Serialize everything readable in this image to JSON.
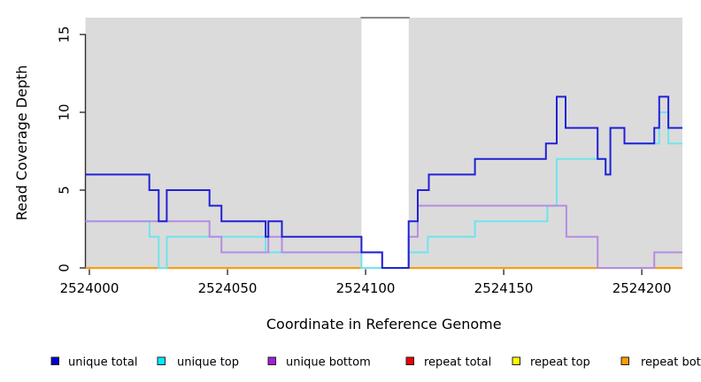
{
  "chart_data": {
    "type": "line",
    "step": "post",
    "title": "",
    "xlabel": "Coordinate in Reference Genome",
    "ylabel": "Read Coverage Depth",
    "xlim": [
      2523998.56,
      2524214.7
    ],
    "ylim": [
      0,
      16.08
    ],
    "x_ticks": [
      "2524000",
      "2524050",
      "2524100",
      "2524150",
      "2524200"
    ],
    "x_tick_values": [
      2524000,
      2524050,
      2524100,
      2524150,
      2524200
    ],
    "y_ticks": [
      "0",
      "5",
      "10",
      "15"
    ],
    "y_tick_values": [
      0,
      5,
      10,
      15
    ],
    "grid": false,
    "plot_bg": "#dbdbdb",
    "gap_band": {
      "x0": 2524098.5,
      "x1": 2524115.6,
      "color": "#ffffff",
      "top_border": "#8a8a8a"
    },
    "legend_position": "bottom",
    "series": [
      {
        "name": "repeat total",
        "color": "#e00000",
        "points": [
          [
            2523998.56,
            0
          ]
        ]
      },
      {
        "name": "repeat top",
        "color": "#f0f000",
        "points": [
          [
            2523998.56,
            0
          ]
        ]
      },
      {
        "name": "repeat bottom",
        "color": "#ff9d00",
        "points": [
          [
            2523998.56,
            0
          ]
        ]
      },
      {
        "name": "unique top",
        "color": "#70e4ef",
        "points": [
          [
            2523998.56,
            3
          ],
          [
            2524021.8,
            2
          ],
          [
            2524025.1,
            0
          ],
          [
            2524028,
            2
          ],
          [
            2524063.8,
            1
          ],
          [
            2524098.5,
            0
          ],
          [
            2524115.6,
            1
          ],
          [
            2524122.5,
            2
          ],
          [
            2524139.6,
            3
          ],
          [
            2524165.8,
            4
          ],
          [
            2524169.2,
            7
          ],
          [
            2524186.9,
            6
          ],
          [
            2524188.6,
            9
          ],
          [
            2524193.7,
            8
          ],
          [
            2524206.3,
            10
          ],
          [
            2524209.6,
            8
          ]
        ]
      },
      {
        "name": "unique bottom",
        "color": "#b58ce2",
        "points": [
          [
            2523998.56,
            3
          ],
          [
            2524043.5,
            2
          ],
          [
            2524047.8,
            1
          ],
          [
            2524064.8,
            2
          ],
          [
            2524069.7,
            1
          ],
          [
            2524106,
            0
          ],
          [
            2524115.6,
            2
          ],
          [
            2524118.9,
            4
          ],
          [
            2524172.7,
            2
          ],
          [
            2524184,
            0
          ],
          [
            2524204.5,
            1
          ]
        ]
      },
      {
        "name": "unique total",
        "color": "#2121d6",
        "points": [
          [
            2523998.56,
            6
          ],
          [
            2524021.7,
            5
          ],
          [
            2524025.1,
            3
          ],
          [
            2524028,
            5
          ],
          [
            2524043.5,
            4
          ],
          [
            2524047.8,
            3
          ],
          [
            2524063.8,
            2
          ],
          [
            2524064.8,
            3
          ],
          [
            2524069.7,
            2
          ],
          [
            2524098.5,
            1
          ],
          [
            2524106,
            0
          ],
          [
            2524115.6,
            3
          ],
          [
            2524118.9,
            5
          ],
          [
            2524122.9,
            6
          ],
          [
            2524139.6,
            7
          ],
          [
            2524165.3,
            8
          ],
          [
            2524169.2,
            11
          ],
          [
            2524172.4,
            9
          ],
          [
            2524184,
            7
          ],
          [
            2524186.9,
            6
          ],
          [
            2524188.6,
            9
          ],
          [
            2524193.7,
            8
          ],
          [
            2524204.5,
            9
          ],
          [
            2524206.3,
            11
          ],
          [
            2524209.6,
            9
          ]
        ]
      }
    ],
    "legend": [
      {
        "label": "unique total",
        "color": "#0000cd"
      },
      {
        "label": "unique top",
        "color": "#00eeff"
      },
      {
        "label": "unique bottom",
        "color": "#a21fd6"
      },
      {
        "label": "repeat total",
        "color": "#ee0000"
      },
      {
        "label": "repeat top",
        "color": "#fdfd00"
      },
      {
        "label": "repeat bottom",
        "color": "#ff9d00"
      }
    ]
  }
}
